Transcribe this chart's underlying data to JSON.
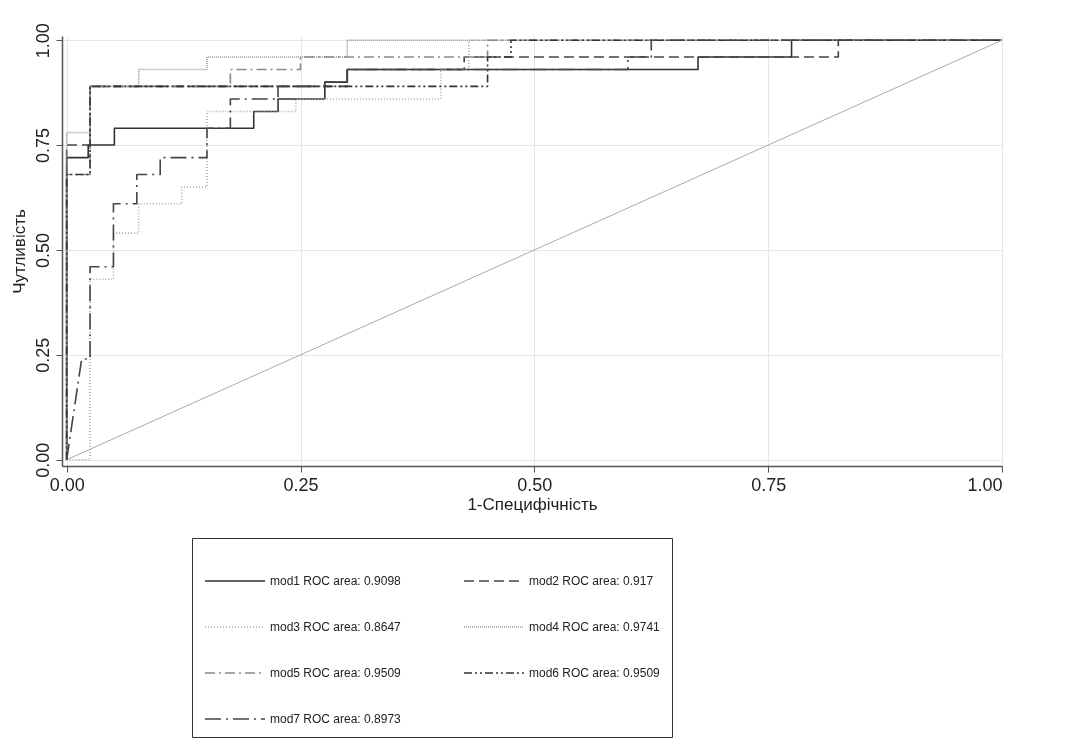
{
  "chart_data": {
    "type": "line",
    "xlabel": "1-Специфічність",
    "ylabel": "Чутливість",
    "xlim": [
      -0.005,
      1.0
    ],
    "ylim": [
      -0.015,
      1.01
    ],
    "xticks": [
      {
        "value": 0,
        "label": "0.00"
      },
      {
        "value": 0.25,
        "label": "0.25"
      },
      {
        "value": 0.5,
        "label": "0.50"
      },
      {
        "value": 0.75,
        "label": "0.75"
      },
      {
        "value": 1,
        "label": "1.00"
      }
    ],
    "yticks": [
      {
        "value": 0,
        "label": "0.00"
      },
      {
        "value": 0.25,
        "label": "0.25"
      },
      {
        "value": 0.5,
        "label": "0.50"
      },
      {
        "value": 0.75,
        "label": "0.75"
      },
      {
        "value": 1,
        "label": "1.00"
      }
    ],
    "grid": true,
    "legend": "bottom",
    "series": [
      {
        "name": "mod1 ROC area: 0.9098",
        "color": "#333333",
        "line_style": "solid",
        "x": [
          0,
          0,
          0.023,
          0.023,
          0.051,
          0.051,
          0.2,
          0.2,
          0.226,
          0.226,
          0.276,
          0.276,
          0.3,
          0.3,
          0.675,
          0.675,
          0.775,
          0.775,
          1
        ],
        "values": [
          0,
          0.72,
          0.72,
          0.75,
          0.75,
          0.79,
          0.79,
          0.83,
          0.83,
          0.86,
          0.86,
          0.9,
          0.9,
          0.93,
          0.93,
          0.96,
          0.96,
          1,
          1
        ]
      },
      {
        "name": "mod2 ROC area: 0.917",
        "color": "#444444",
        "line_style": "dashed",
        "x": [
          0,
          0,
          0.025,
          0.025,
          0.3,
          0.3,
          0.425,
          0.425,
          0.825,
          0.825,
          1
        ],
        "values": [
          0,
          0.75,
          0.75,
          0.89,
          0.89,
          0.93,
          0.93,
          0.96,
          0.96,
          1,
          1
        ]
      },
      {
        "name": "mod3 ROC area: 0.8647",
        "color": "#aaaaaa",
        "line_style": "dotted",
        "x": [
          0,
          0.025,
          0.025,
          0.05,
          0.05,
          0.077,
          0.077,
          0.123,
          0.123,
          0.15,
          0.15,
          0.245,
          0.245,
          0.4,
          0.4,
          0.43,
          0.43,
          1
        ],
        "values": [
          0,
          0,
          0.43,
          0.43,
          0.54,
          0.54,
          0.61,
          0.61,
          0.65,
          0.65,
          0.83,
          0.83,
          0.86,
          0.86,
          0.93,
          0.93,
          1,
          1
        ]
      },
      {
        "name": "mod4 ROC area: 0.9741",
        "color": "#999999",
        "line_style": "dotted",
        "x": [
          0,
          0,
          0.025,
          0.025,
          0.077,
          0.077,
          0.15,
          0.15,
          0.3,
          0.3,
          1
        ],
        "values": [
          0,
          0.78,
          0.78,
          0.89,
          0.89,
          0.93,
          0.93,
          0.96,
          0.96,
          1,
          1
        ]
      },
      {
        "name": "mod5 ROC area: 0.9509",
        "color": "#888888",
        "line_style": "dashed",
        "x": [
          0,
          0,
          0.025,
          0.025,
          0.175,
          0.175,
          0.25,
          0.25,
          0.45,
          0.45,
          1
        ],
        "values": [
          0,
          0.68,
          0.68,
          0.89,
          0.89,
          0.93,
          0.93,
          0.96,
          0.96,
          1,
          1
        ]
      },
      {
        "name": "mod6 ROC area: 0.9509",
        "color": "#333333",
        "line_style": "dashed",
        "x": [
          0,
          0,
          0.025,
          0.025,
          0.45,
          0.45,
          0.475,
          0.475,
          1
        ],
        "values": [
          0,
          0.68,
          0.68,
          0.89,
          0.89,
          0.96,
          0.96,
          1,
          1
        ]
      },
      {
        "name": "mod7 ROC area: 0.8973",
        "color": "#444444",
        "line_style": "dashed",
        "x": [
          0,
          0.016,
          0.025,
          0.025,
          0.05,
          0.05,
          0.075,
          0.075,
          0.1,
          0.1,
          0.15,
          0.15,
          0.175,
          0.175,
          0.226,
          0.226,
          0.276,
          0.276,
          0.3,
          0.3,
          0.6,
          0.6,
          0.625,
          0.625,
          1
        ],
        "values": [
          0,
          0.24,
          0.24,
          0.46,
          0.46,
          0.61,
          0.61,
          0.68,
          0.68,
          0.72,
          0.72,
          0.79,
          0.79,
          0.86,
          0.86,
          0.89,
          0.89,
          0.9,
          0.9,
          0.93,
          0.93,
          0.96,
          0.96,
          1,
          1
        ]
      },
      {
        "color": "#aaaaaa",
        "line_style": "solid",
        "x": [
          0,
          1
        ],
        "values": [
          0,
          1
        ]
      }
    ]
  }
}
